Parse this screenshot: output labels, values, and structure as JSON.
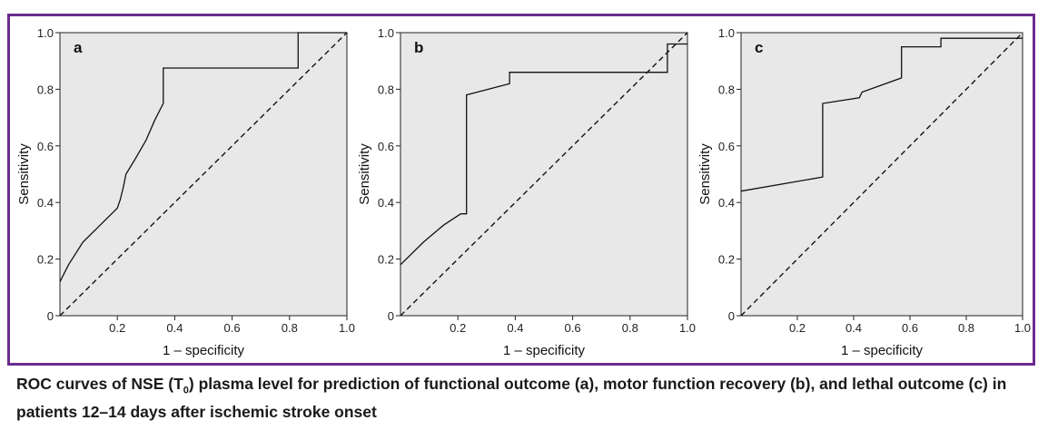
{
  "figure_border_color": "#6b2c8e",
  "plot_background": "#e8e8e8",
  "caption": {
    "part1": "ROC curves of NSE (T",
    "subscript": "0",
    "part2": ") plasma level for prediction of functional outcome (a), motor function recovery (b), and lethal outcome (c) in patients 12–14 days after ischemic stroke onset"
  },
  "chart_data": [
    {
      "type": "line",
      "panel_label": "a",
      "xlabel": "1 – specificity",
      "ylabel": "Sensitivity",
      "xlim": [
        0,
        1
      ],
      "ylim": [
        0,
        1
      ],
      "x_ticks": [
        "0.2",
        "0.4",
        "0.6",
        "0.8",
        "1.0"
      ],
      "y_ticks": [
        "0",
        "0.2",
        "0.4",
        "0.6",
        "0.8",
        "1.0"
      ],
      "grid": false,
      "series": [
        {
          "style": "solid",
          "x": [
            0,
            0.03,
            0.08,
            0.13,
            0.19,
            0.2,
            0.21,
            0.22,
            0.23,
            0.26,
            0.3,
            0.33,
            0.36,
            0.36,
            0.83,
            0.83,
            1.0
          ],
          "y": [
            0.12,
            0.18,
            0.26,
            0.31,
            0.37,
            0.38,
            0.41,
            0.45,
            0.5,
            0.55,
            0.62,
            0.69,
            0.75,
            0.875,
            0.875,
            1.0,
            1.0
          ]
        },
        {
          "style": "dashed",
          "x": [
            0,
            1
          ],
          "y": [
            0,
            1
          ]
        }
      ]
    },
    {
      "type": "line",
      "panel_label": "b",
      "xlabel": "1 – specificity",
      "ylabel": "Sensitivity",
      "xlim": [
        0,
        1
      ],
      "ylim": [
        0,
        1
      ],
      "x_ticks": [
        "0.2",
        "0.4",
        "0.6",
        "0.8",
        "1.0"
      ],
      "y_ticks": [
        "0",
        "0.2",
        "0.4",
        "0.6",
        "0.8",
        "1.0"
      ],
      "grid": false,
      "series": [
        {
          "style": "solid",
          "x": [
            0,
            0.08,
            0.15,
            0.21,
            0.23,
            0.23,
            0.38,
            0.38,
            0.93,
            0.93,
            1.0
          ],
          "y": [
            0.18,
            0.26,
            0.32,
            0.36,
            0.36,
            0.78,
            0.82,
            0.86,
            0.86,
            0.96,
            0.96
          ]
        },
        {
          "style": "dashed",
          "x": [
            0,
            1
          ],
          "y": [
            0,
            1
          ]
        }
      ]
    },
    {
      "type": "line",
      "panel_label": "c",
      "xlabel": "1 – specificity",
      "ylabel": "Sensitivity",
      "xlim": [
        0,
        1
      ],
      "ylim": [
        0,
        1
      ],
      "x_ticks": [
        "0.2",
        "0.4",
        "0.6",
        "0.8",
        "1.0"
      ],
      "y_ticks": [
        "0",
        "0.2",
        "0.4",
        "0.6",
        "0.8",
        "1.0"
      ],
      "grid": false,
      "series": [
        {
          "style": "solid",
          "x": [
            0,
            0.29,
            0.29,
            0.42,
            0.43,
            0.57,
            0.57,
            0.71,
            0.71,
            1.0
          ],
          "y": [
            0.44,
            0.49,
            0.75,
            0.77,
            0.79,
            0.84,
            0.95,
            0.95,
            0.98,
            0.98
          ]
        },
        {
          "style": "dashed",
          "x": [
            0,
            1
          ],
          "y": [
            0,
            1
          ]
        }
      ]
    }
  ]
}
